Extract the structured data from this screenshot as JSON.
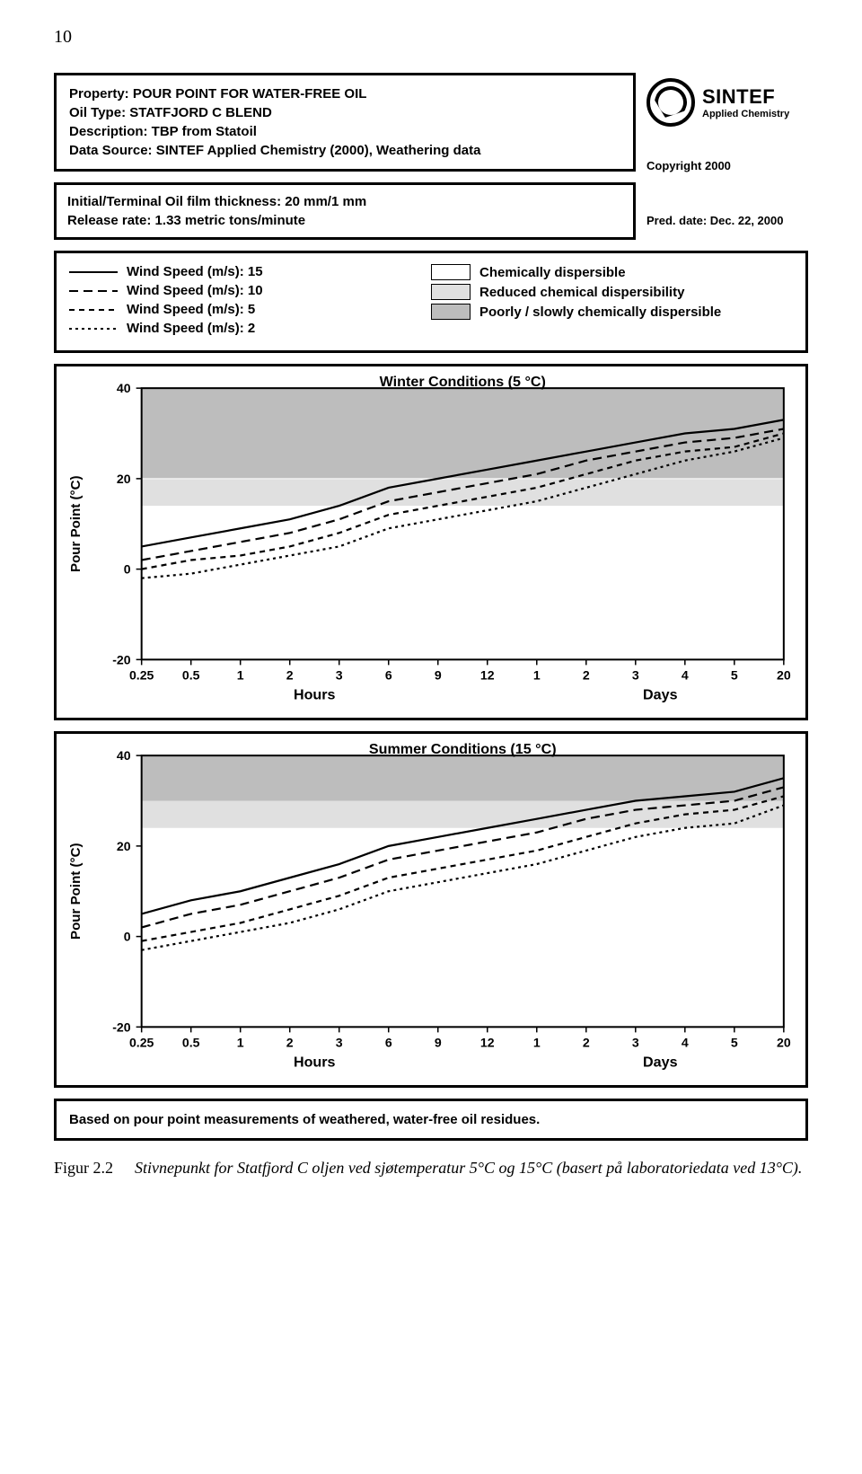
{
  "page_number": "10",
  "header": {
    "lines": [
      "Property: POUR POINT FOR WATER-FREE OIL",
      "Oil Type: STATFJORD C BLEND",
      "Description: TBP from Statoil",
      "Data Source: SINTEF Applied Chemistry (2000), Weathering data"
    ]
  },
  "brand": {
    "name": "SINTEF",
    "sub": "Applied Chemistry",
    "copyright": "Copyright 2000"
  },
  "subheader": {
    "lines": [
      "Initial/Terminal Oil film thickness: 20 mm/1 mm",
      "Release rate: 1.33 metric tons/minute"
    ],
    "pred_date": "Pred. date: Dec. 22, 2000"
  },
  "legend": {
    "wind": [
      {
        "label": "Wind Speed (m/s): 15",
        "dash": "none"
      },
      {
        "label": "Wind Speed (m/s): 10",
        "dash": "10,6"
      },
      {
        "label": "Wind Speed (m/s): 5",
        "dash": "6,5"
      },
      {
        "label": "Wind Speed (m/s): 2",
        "dash": "3,4"
      }
    ],
    "bands": [
      {
        "label": "Chemically dispersible",
        "color": "#ffffff"
      },
      {
        "label": "Reduced chemical dispersibility",
        "color": "#e0e0e0"
      },
      {
        "label": "Poorly / slowly chemically dispersible",
        "color": "#bdbdbd"
      }
    ]
  },
  "charts": {
    "ylabel": "Pour Point (°C)",
    "ylim": [
      -20,
      40
    ],
    "yticks": [
      -20,
      0,
      20,
      40
    ],
    "xticks": [
      "0.25",
      "0.5",
      "1",
      "2",
      "3",
      "6",
      "9",
      "12",
      "1",
      "2",
      "3",
      "4",
      "5",
      "20"
    ],
    "x_at_24_index": 8,
    "xlabel_left": "Hours",
    "xlabel_right": "Days",
    "background_color": "#ffffff",
    "grid_color": "#d9d9d9",
    "band_reduced_top_winter": 14,
    "band_reduced_top_summer": 24,
    "band_poor_top": 40,
    "winter": {
      "title": "Winter Conditions (5 °C)",
      "series": [
        {
          "dash": "none",
          "pts": [
            [
              0,
              5
            ],
            [
              1,
              7
            ],
            [
              2,
              9
            ],
            [
              3,
              11
            ],
            [
              4,
              14
            ],
            [
              5,
              18
            ],
            [
              6,
              20
            ],
            [
              7,
              22
            ],
            [
              8,
              24
            ],
            [
              9,
              26
            ],
            [
              10,
              28
            ],
            [
              11,
              30
            ],
            [
              12,
              31
            ],
            [
              13,
              33
            ]
          ]
        },
        {
          "dash": "10,6",
          "pts": [
            [
              0,
              2
            ],
            [
              1,
              4
            ],
            [
              2,
              6
            ],
            [
              3,
              8
            ],
            [
              4,
              11
            ],
            [
              5,
              15
            ],
            [
              6,
              17
            ],
            [
              7,
              19
            ],
            [
              8,
              21
            ],
            [
              9,
              24
            ],
            [
              10,
              26
            ],
            [
              11,
              28
            ],
            [
              12,
              29
            ],
            [
              13,
              31
            ]
          ]
        },
        {
          "dash": "6,5",
          "pts": [
            [
              0,
              0
            ],
            [
              1,
              2
            ],
            [
              2,
              3
            ],
            [
              3,
              5
            ],
            [
              4,
              8
            ],
            [
              5,
              12
            ],
            [
              6,
              14
            ],
            [
              7,
              16
            ],
            [
              8,
              18
            ],
            [
              9,
              21
            ],
            [
              10,
              24
            ],
            [
              11,
              26
            ],
            [
              12,
              27
            ],
            [
              13,
              30
            ]
          ]
        },
        {
          "dash": "3,4",
          "pts": [
            [
              0,
              -2
            ],
            [
              1,
              -1
            ],
            [
              2,
              1
            ],
            [
              3,
              3
            ],
            [
              4,
              5
            ],
            [
              5,
              9
            ],
            [
              6,
              11
            ],
            [
              7,
              13
            ],
            [
              8,
              15
            ],
            [
              9,
              18
            ],
            [
              10,
              21
            ],
            [
              11,
              24
            ],
            [
              12,
              26
            ],
            [
              13,
              29
            ]
          ]
        }
      ]
    },
    "summer": {
      "title": "Summer Conditions (15 °C)",
      "series": [
        {
          "dash": "none",
          "pts": [
            [
              0,
              5
            ],
            [
              1,
              8
            ],
            [
              2,
              10
            ],
            [
              3,
              13
            ],
            [
              4,
              16
            ],
            [
              5,
              20
            ],
            [
              6,
              22
            ],
            [
              7,
              24
            ],
            [
              8,
              26
            ],
            [
              9,
              28
            ],
            [
              10,
              30
            ],
            [
              11,
              31
            ],
            [
              12,
              32
            ],
            [
              13,
              35
            ]
          ]
        },
        {
          "dash": "10,6",
          "pts": [
            [
              0,
              2
            ],
            [
              1,
              5
            ],
            [
              2,
              7
            ],
            [
              3,
              10
            ],
            [
              4,
              13
            ],
            [
              5,
              17
            ],
            [
              6,
              19
            ],
            [
              7,
              21
            ],
            [
              8,
              23
            ],
            [
              9,
              26
            ],
            [
              10,
              28
            ],
            [
              11,
              29
            ],
            [
              12,
              30
            ],
            [
              13,
              33
            ]
          ]
        },
        {
          "dash": "6,5",
          "pts": [
            [
              0,
              -1
            ],
            [
              1,
              1
            ],
            [
              2,
              3
            ],
            [
              3,
              6
            ],
            [
              4,
              9
            ],
            [
              5,
              13
            ],
            [
              6,
              15
            ],
            [
              7,
              17
            ],
            [
              8,
              19
            ],
            [
              9,
              22
            ],
            [
              10,
              25
            ],
            [
              11,
              27
            ],
            [
              12,
              28
            ],
            [
              13,
              31
            ]
          ]
        },
        {
          "dash": "3,4",
          "pts": [
            [
              0,
              -3
            ],
            [
              1,
              -1
            ],
            [
              2,
              1
            ],
            [
              3,
              3
            ],
            [
              4,
              6
            ],
            [
              5,
              10
            ],
            [
              6,
              12
            ],
            [
              7,
              14
            ],
            [
              8,
              16
            ],
            [
              9,
              19
            ],
            [
              10,
              22
            ],
            [
              11,
              24
            ],
            [
              12,
              25
            ],
            [
              13,
              29
            ]
          ]
        }
      ]
    }
  },
  "footer_note": "Based on pour point measurements of weathered, water-free oil residues.",
  "caption": {
    "label": "Figur 2.2",
    "text": "Stivnepunkt for Statfjord C oljen ved sjøtemperatur 5°C og 15°C (basert på laboratoriedata ved 13°C)."
  }
}
